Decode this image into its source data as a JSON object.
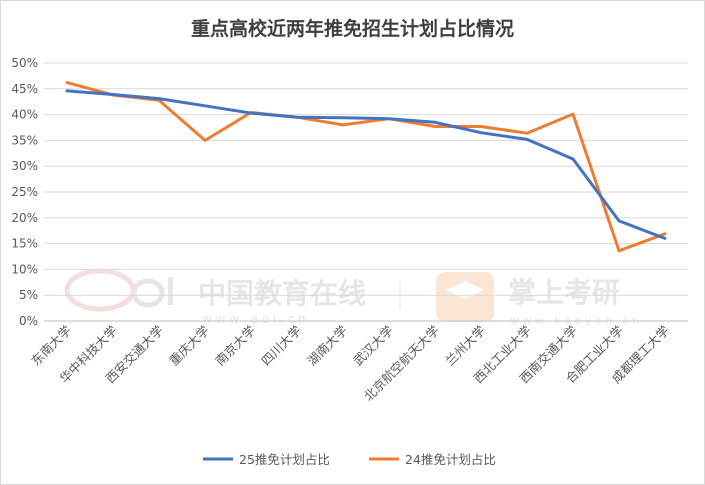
{
  "chart_data": {
    "type": "line",
    "title": "重点高校近两年推免招生计划占比情况",
    "xlabel": "",
    "ylabel": "",
    "ylim": [
      0,
      50
    ],
    "yticks": [
      "0%",
      "5%",
      "10%",
      "15%",
      "20%",
      "25%",
      "30%",
      "35%",
      "40%",
      "45%",
      "50%"
    ],
    "grid": "horizontal",
    "legend_position": "bottom",
    "categories": [
      "东南大学",
      "华中科技大学",
      "西安交通大学",
      "重庆大学",
      "南京大学",
      "四川大学",
      "湖南大学",
      "武汉大学",
      "北京航空航天大学",
      "兰州大学",
      "西北工业大学",
      "西南交通大学",
      "合肥工业大学",
      "成都理工大学"
    ],
    "series": [
      {
        "name": "25推免计划占比",
        "color": "#4472c4",
        "values": [
          44.6,
          43.9,
          43.1,
          41.7,
          40.3,
          39.5,
          39.4,
          39.2,
          38.5,
          36.5,
          35.2,
          31.4,
          19.4,
          16.0
        ]
      },
      {
        "name": "24推免计划占比",
        "color": "#ed7d31",
        "values": [
          46.2,
          43.8,
          42.8,
          35.0,
          40.4,
          39.5,
          38.0,
          39.2,
          37.7,
          37.7,
          36.4,
          40.1,
          13.6,
          16.9
        ]
      }
    ]
  },
  "watermarks": {
    "eol_cn": "中国教育在线",
    "eol_url": "w w w . e o l . c n",
    "ky_cn": "掌上考研",
    "ky_url": "w w w . k a o y a n . c n"
  }
}
